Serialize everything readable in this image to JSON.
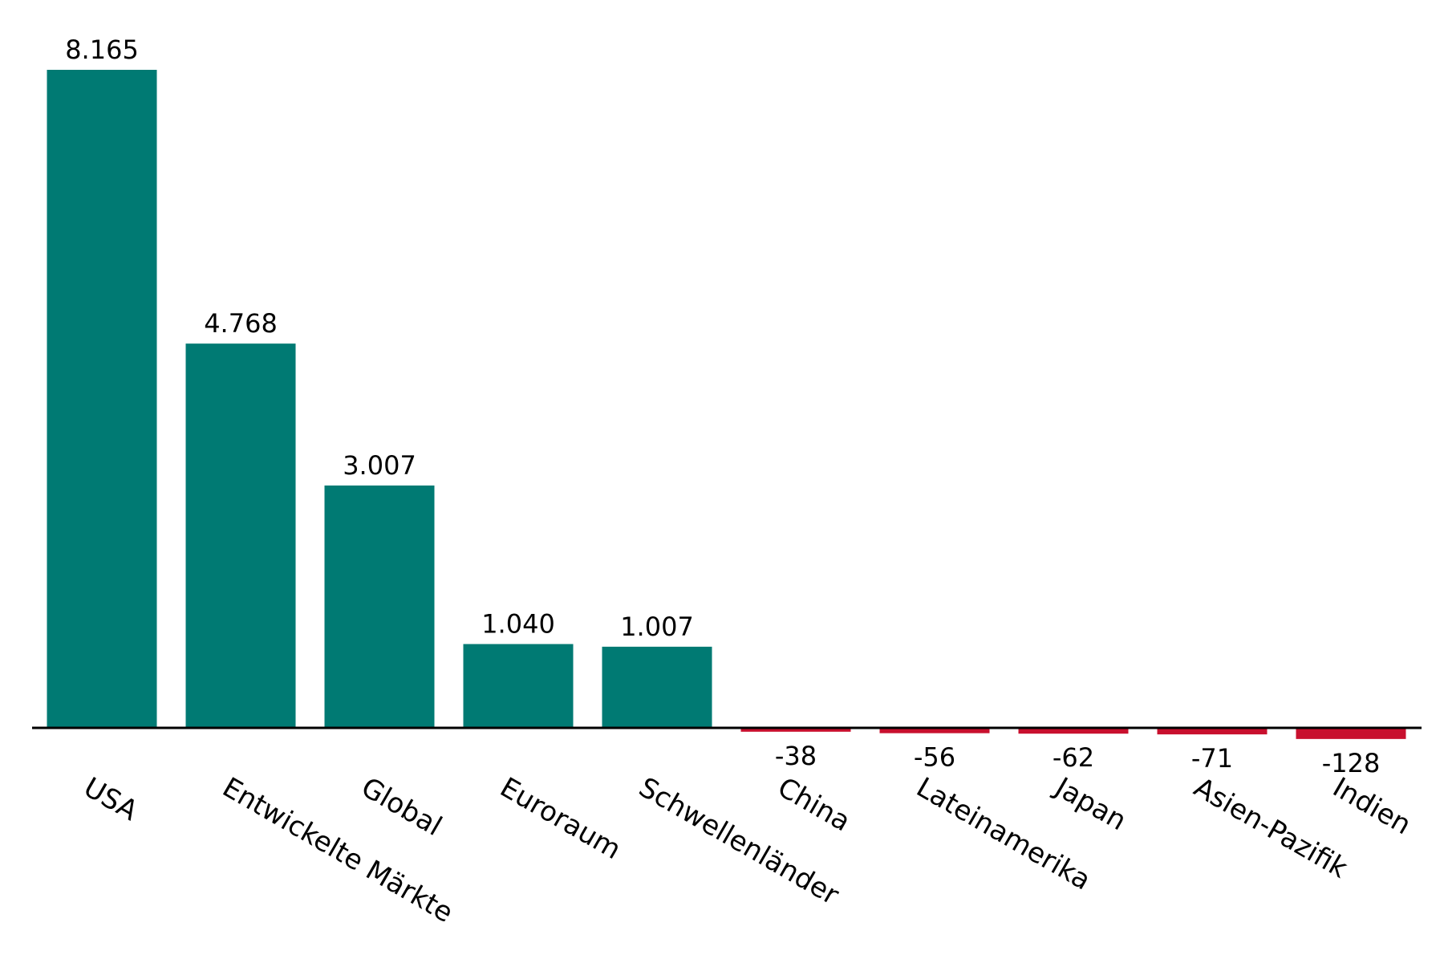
{
  "chart_data": {
    "type": "bar",
    "categories": [
      "USA",
      "Entwickelte Märkte",
      "Global",
      "Euroraum",
      "Schwellenländer",
      "China",
      "Lateinamerika",
      "Japan",
      "Asien-Pazifik",
      "Indien"
    ],
    "values": [
      8165,
      4768,
      3007,
      1040,
      1007,
      -38,
      -56,
      -62,
      -71,
      -128
    ],
    "value_labels": [
      "8.165",
      "4.768",
      "3.007",
      "1.040",
      "1.007",
      "-38",
      "-56",
      "-62",
      "-71",
      "-128"
    ],
    "title": "",
    "xlabel": "",
    "ylabel": "",
    "ylim": [
      -128,
      8165
    ],
    "grid": false,
    "colors": {
      "positive": "#007A73",
      "negative": "#C8102E",
      "axis": "#000000"
    }
  }
}
